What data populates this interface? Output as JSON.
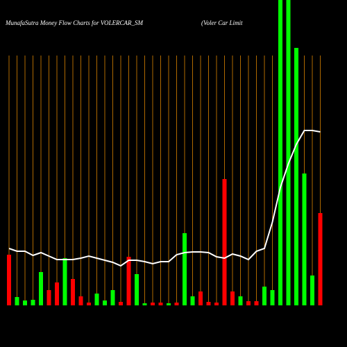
{
  "chart_data": {
    "type": "bar",
    "title": "MunafaSutra  Money Flow  Charts for VOLERCAR_SM",
    "subtitle": "(Voler Car Limit",
    "ylim": [
      0,
      440
    ],
    "bars": {
      "values": [
        73,
        12,
        7,
        8,
        48,
        22,
        33,
        68,
        38,
        13,
        4,
        17,
        7,
        22,
        5,
        70,
        45,
        3,
        4,
        4,
        3,
        4,
        104,
        13,
        20,
        5,
        4,
        182,
        20,
        13,
        6,
        6,
        27,
        22,
        445,
        445,
        371,
        190,
        43,
        133
      ],
      "colors": [
        "#ff0000",
        "#00ff00",
        "#00ff00",
        "#00ff00",
        "#00ff00",
        "#ff0000",
        "#ff0000",
        "#00ff00",
        "#ff0000",
        "#ff0000",
        "#ff0000",
        "#00ff00",
        "#00ff00",
        "#00ff00",
        "#ff0000",
        "#ff0000",
        "#00ff00",
        "#00ff00",
        "#ff0000",
        "#ff0000",
        "#00ff00",
        "#ff0000",
        "#00ff00",
        "#00ff00",
        "#ff0000",
        "#ff0000",
        "#ff0000",
        "#ff0000",
        "#ff0000",
        "#00ff00",
        "#ff0000",
        "#ff0000",
        "#00ff00",
        "#00ff00",
        "#00ff00",
        "#00ff00",
        "#00ff00",
        "#00ff00",
        "#00ff00",
        "#ff0000"
      ]
    },
    "line": {
      "color": "#ffffff",
      "values": [
        82,
        78,
        78,
        72,
        76,
        71,
        66,
        66,
        66,
        68,
        71,
        68,
        65,
        62,
        57,
        65,
        65,
        63,
        60,
        63,
        63,
        73,
        76,
        77,
        77,
        76,
        70,
        68,
        74,
        71,
        66,
        78,
        82,
        120,
        170,
        204,
        232,
        252,
        252,
        250
      ]
    },
    "grid_color": "#b06a00"
  }
}
